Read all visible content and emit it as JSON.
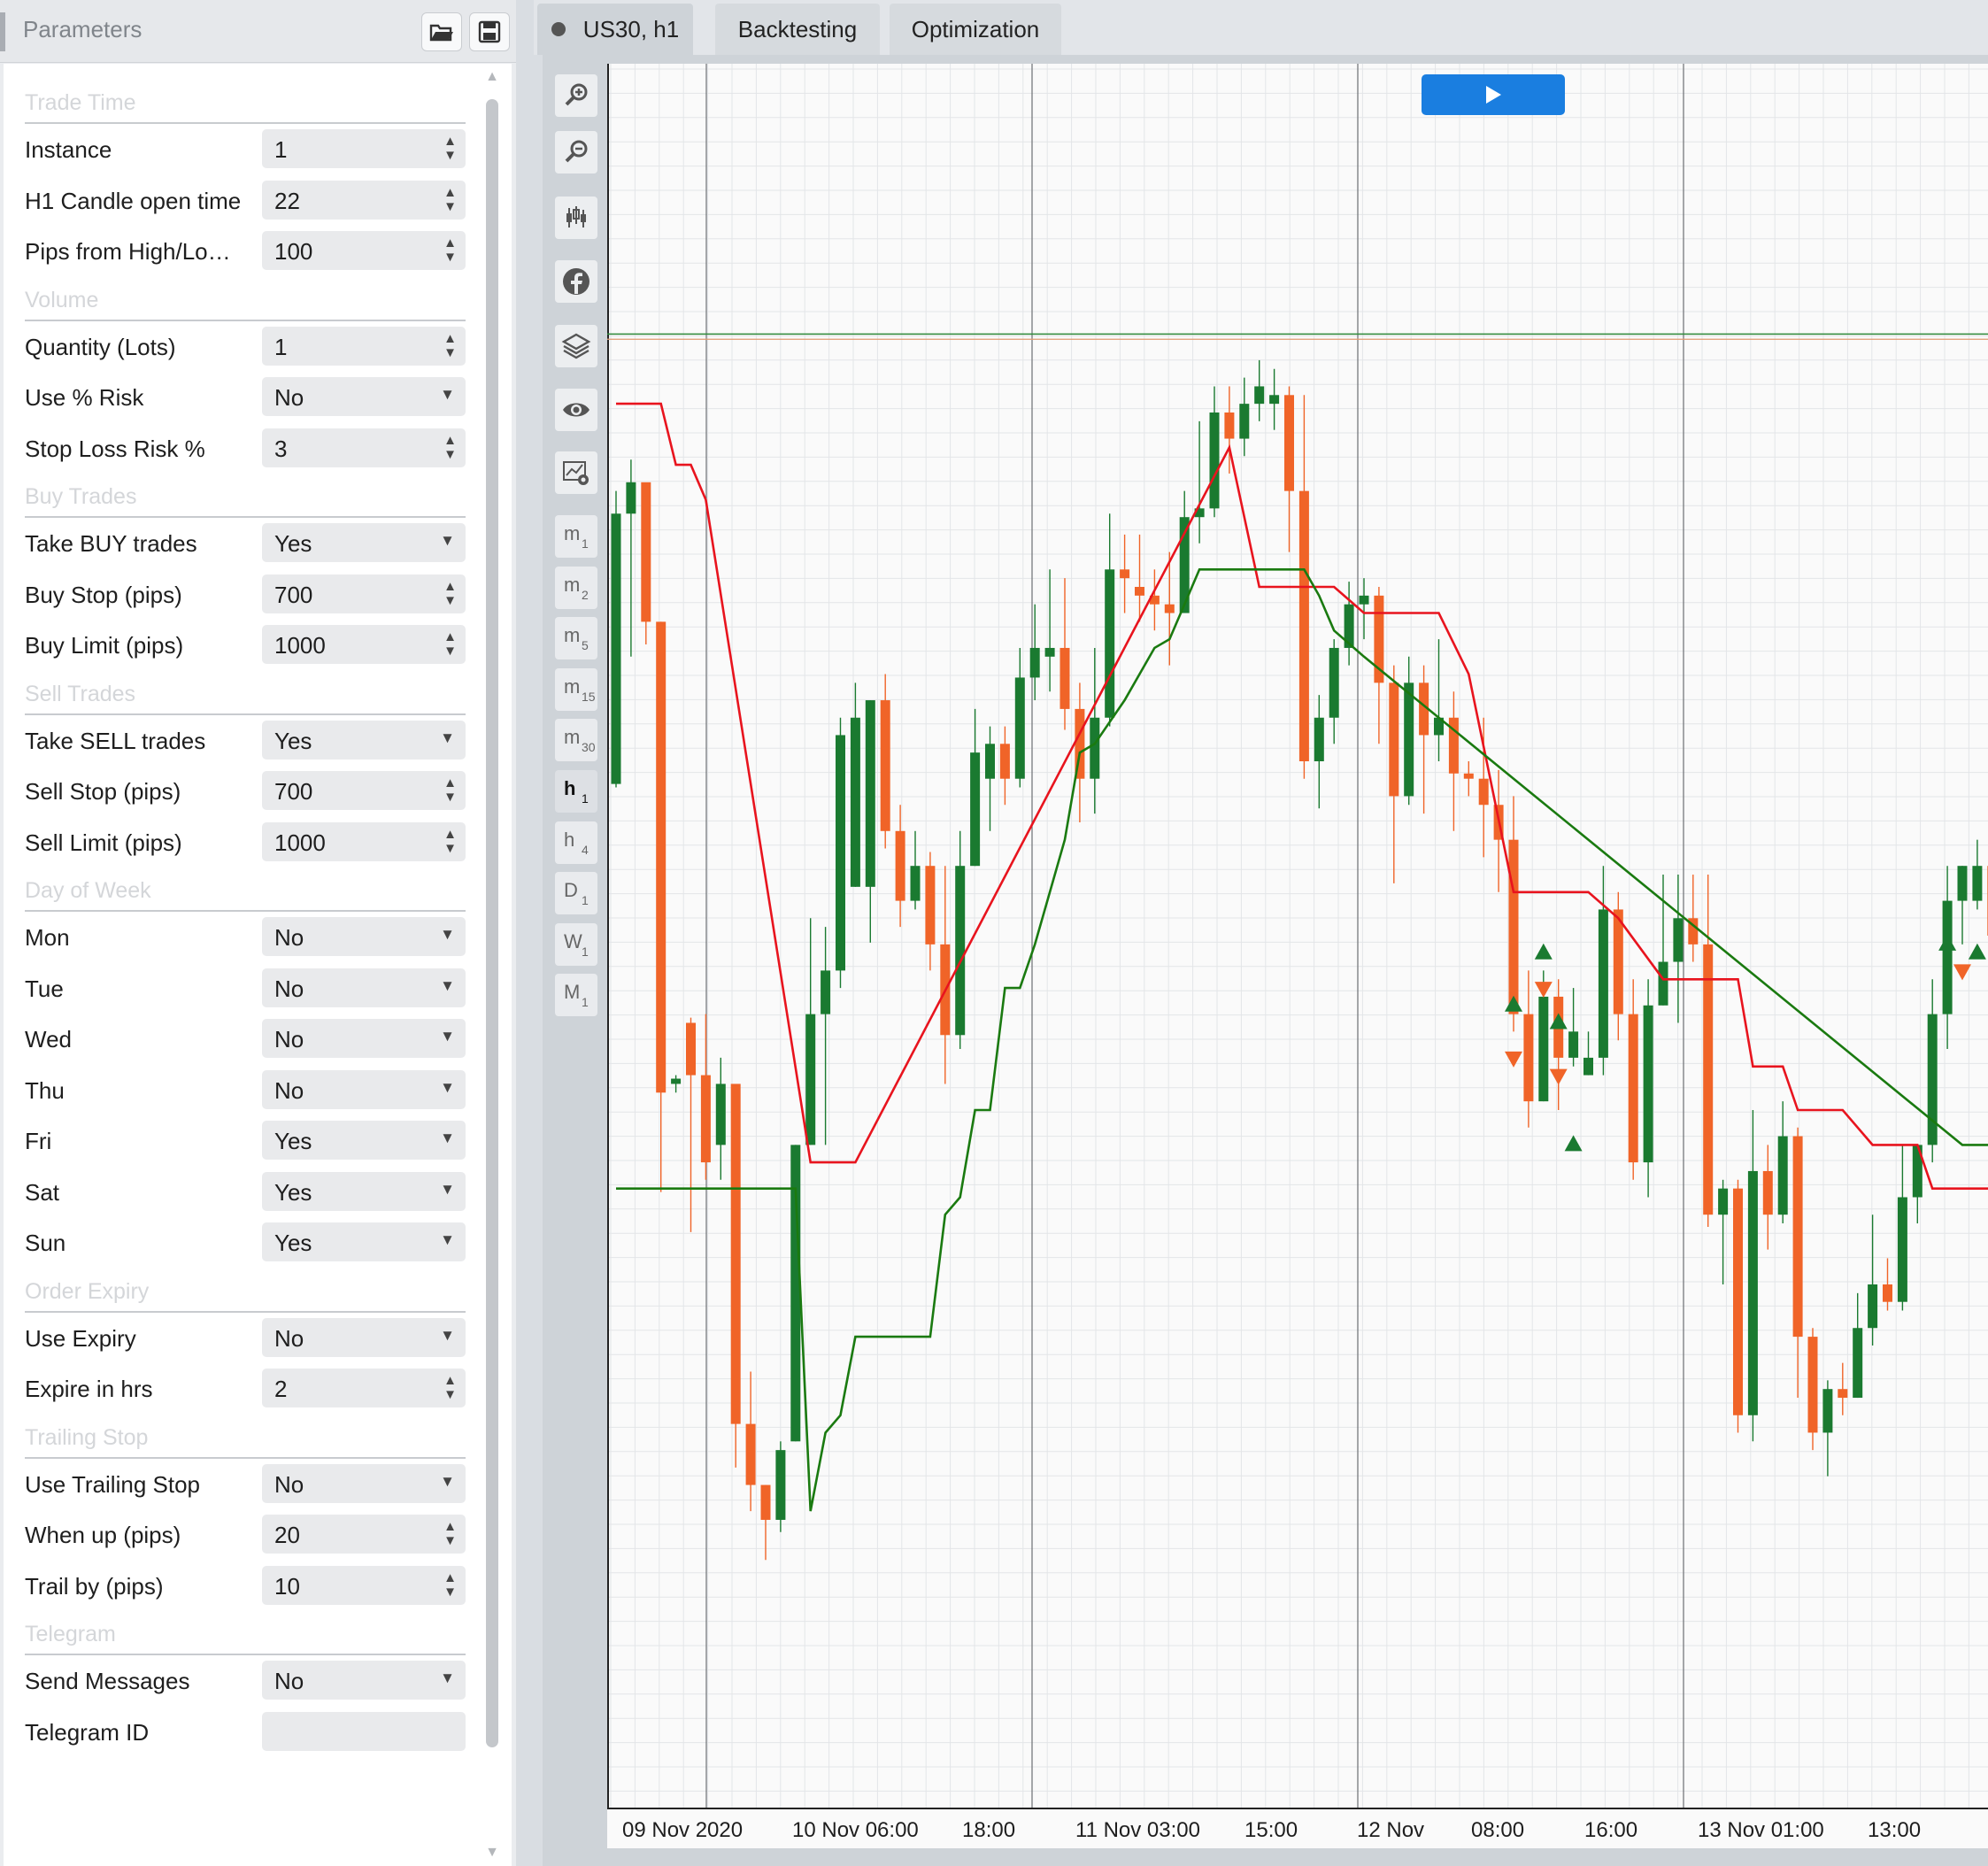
{
  "panel": {
    "title": "Parameters",
    "sections": [
      {
        "title": "Trade Time",
        "fields": [
          {
            "label": "Instance",
            "value": "1",
            "kind": "number"
          },
          {
            "label": "H1 Candle open time",
            "value": "22",
            "kind": "number"
          },
          {
            "label": "Pips from High/Low",
            "display_label": "Pips from High/Lo…",
            "value": "100",
            "kind": "number"
          }
        ]
      },
      {
        "title": "Volume",
        "fields": [
          {
            "label": "Quantity (Lots)",
            "value": "1",
            "kind": "number"
          },
          {
            "label": "Use % Risk",
            "value": "No",
            "kind": "select"
          },
          {
            "label": "Stop Loss Risk %",
            "value": "3",
            "kind": "number"
          }
        ]
      },
      {
        "title": "Buy Trades",
        "fields": [
          {
            "label": "Take BUY trades",
            "value": "Yes",
            "kind": "select"
          },
          {
            "label": "Buy Stop (pips)",
            "value": "700",
            "kind": "number"
          },
          {
            "label": "Buy Limit (pips)",
            "value": "1000",
            "kind": "number"
          }
        ]
      },
      {
        "title": "Sell Trades",
        "fields": [
          {
            "label": "Take SELL trades",
            "value": "Yes",
            "kind": "select"
          },
          {
            "label": "Sell Stop (pips)",
            "value": "700",
            "kind": "number"
          },
          {
            "label": "Sell Limit (pips)",
            "value": "1000",
            "kind": "number"
          }
        ]
      },
      {
        "title": "Day of Week",
        "fields": [
          {
            "label": "Mon",
            "value": "No",
            "kind": "select"
          },
          {
            "label": "Tue",
            "value": "No",
            "kind": "select"
          },
          {
            "label": "Wed",
            "value": "No",
            "kind": "select"
          },
          {
            "label": "Thu",
            "value": "No",
            "kind": "select"
          },
          {
            "label": "Fri",
            "value": "Yes",
            "kind": "select"
          },
          {
            "label": "Sat",
            "value": "Yes",
            "kind": "select"
          },
          {
            "label": "Sun",
            "value": "Yes",
            "kind": "select"
          }
        ]
      },
      {
        "title": "Order Expiry",
        "fields": [
          {
            "label": "Use Expiry",
            "value": "No",
            "kind": "select"
          },
          {
            "label": "Expire in hrs",
            "value": "2",
            "kind": "number"
          }
        ]
      },
      {
        "title": "Trailing Stop",
        "fields": [
          {
            "label": "Use Trailing Stop",
            "value": "No",
            "kind": "select"
          },
          {
            "label": "When up (pips)",
            "value": "20",
            "kind": "number"
          },
          {
            "label": "Trail by (pips)",
            "value": "10",
            "kind": "number"
          }
        ]
      },
      {
        "title": "Telegram",
        "fields": [
          {
            "label": "Send Messages",
            "value": "No",
            "kind": "select"
          },
          {
            "label": "Telegram ID",
            "value": "",
            "kind": "text"
          }
        ]
      }
    ],
    "icons": {
      "open": "folder-open-icon",
      "save": "save-disk-icon"
    }
  },
  "tabs": [
    {
      "label": "US30, h1",
      "active": true
    },
    {
      "label": "Backtesting",
      "active": false
    },
    {
      "label": "Optimization",
      "active": false
    }
  ],
  "toolbar": {
    "tools": [
      "zoom-in-icon",
      "zoom-out-icon",
      "candlestick-icon",
      "facebook-icon",
      "layers-icon",
      "eye-icon",
      "chart-settings-icon"
    ],
    "timeframes": [
      {
        "main": "m",
        "sub": "1"
      },
      {
        "main": "m",
        "sub": "2"
      },
      {
        "main": "m",
        "sub": "5"
      },
      {
        "main": "m",
        "sub": "15"
      },
      {
        "main": "m",
        "sub": "30"
      },
      {
        "main": "h",
        "sub": "1",
        "active": true
      },
      {
        "main": "h",
        "sub": "4"
      },
      {
        "main": "D",
        "sub": "1"
      },
      {
        "main": "W",
        "sub": "1"
      },
      {
        "main": "M",
        "sub": "1"
      }
    ]
  },
  "colors": {
    "bull": "#1a7a30",
    "bear": "#f06428",
    "upper_line": "#e8141e",
    "lower_line": "#1a7a10",
    "play": "#1a7ee0"
  },
  "chart_data": {
    "type": "candlestick",
    "symbol": "US30",
    "timeframe": "h1",
    "x_labels": [
      "09 Nov 2020",
      "10 Nov 06:00",
      "18:00",
      "11 Nov 03:00",
      "15:00",
      "12 Nov",
      "08:00",
      "16:00",
      "13 Nov 01:00",
      "13:00"
    ],
    "ylim": [
      0,
      100
    ],
    "candles": [
      [
        58.7,
        74.2,
        75.5,
        58.5
      ],
      [
        74.2,
        76.0,
        77.3,
        66.0
      ],
      [
        76.0,
        68.0,
        74.0,
        66.7
      ],
      [
        68.0,
        41.0,
        68.0,
        35.3
      ],
      [
        41.5,
        41.8,
        41.0,
        42.0
      ],
      [
        45.0,
        42.0,
        45.3,
        33.0
      ],
      [
        42.0,
        37.0,
        45.5,
        36.0
      ],
      [
        38.0,
        41.5,
        43.0,
        36.0
      ],
      [
        41.5,
        22.0,
        41.5,
        19.5
      ],
      [
        22.0,
        18.5,
        25.0,
        17.0
      ],
      [
        18.5,
        16.5,
        18.5,
        14.2
      ],
      [
        16.5,
        20.5,
        21.0,
        15.8
      ],
      [
        21.0,
        38.0,
        38.0,
        21.0
      ],
      [
        38.0,
        45.5,
        51.0,
        38.0
      ],
      [
        45.5,
        48.0,
        50.5,
        38.0
      ],
      [
        48.0,
        61.5,
        62.5,
        47.0
      ],
      [
        52.8,
        62.5,
        64.5,
        52.8
      ],
      [
        52.8,
        63.5,
        63.5,
        49.6
      ],
      [
        63.5,
        56.0,
        65.0,
        55.0
      ],
      [
        56.0,
        52.0,
        57.5,
        50.5
      ],
      [
        52.0,
        54.0,
        56.0,
        51.5
      ],
      [
        54.0,
        49.5,
        54.8,
        48.0
      ],
      [
        49.5,
        44.3,
        54.0,
        41.5
      ],
      [
        44.3,
        54.0,
        56.0,
        43.5
      ],
      [
        54.0,
        60.5,
        63.0,
        54.0
      ],
      [
        59.0,
        61.0,
        62.0,
        56.0
      ],
      [
        61.0,
        59.0,
        62.0,
        57.5
      ],
      [
        59.0,
        64.8,
        66.5,
        58.5
      ],
      [
        64.8,
        66.5,
        69.0,
        63.5
      ],
      [
        66.0,
        66.5,
        71.0,
        64.0
      ],
      [
        66.5,
        63.0,
        70.5,
        61.8
      ],
      [
        63.0,
        59.0,
        64.5,
        56.5
      ],
      [
        59.0,
        62.5,
        66.5,
        57.0
      ],
      [
        62.5,
        71.0,
        74.2,
        62.0
      ],
      [
        71.0,
        70.5,
        73.0,
        68.5
      ],
      [
        70.0,
        69.5,
        73.0,
        68.0
      ],
      [
        69.5,
        69.0,
        71.0,
        67.5
      ],
      [
        69.0,
        68.5,
        72.0,
        65.5
      ],
      [
        68.5,
        74.0,
        75.5,
        68.5
      ],
      [
        74.0,
        74.5,
        79.5,
        72.5
      ],
      [
        74.5,
        80.0,
        81.5,
        74.0
      ],
      [
        80.0,
        78.5,
        81.5,
        76.5
      ],
      [
        78.5,
        80.5,
        82.0,
        77.5
      ],
      [
        80.5,
        81.5,
        83.0,
        79.5
      ],
      [
        80.5,
        81.0,
        82.5,
        79.0
      ],
      [
        81.0,
        75.5,
        81.5,
        72.0
      ],
      [
        75.5,
        60.0,
        81.0,
        59.0
      ],
      [
        60.0,
        62.5,
        63.8,
        57.3
      ],
      [
        62.5,
        66.5,
        67.0,
        61.0
      ],
      [
        66.5,
        69.0,
        70.3,
        65.5
      ],
      [
        69.0,
        69.5,
        70.5,
        67.0
      ],
      [
        69.5,
        64.5,
        70.0,
        61.0
      ],
      [
        64.5,
        58.0,
        65.5,
        53.0
      ],
      [
        58.0,
        64.5,
        66.0,
        57.5
      ],
      [
        64.5,
        61.5,
        65.5,
        57.0
      ],
      [
        61.5,
        62.5,
        67.0,
        60.0
      ],
      [
        62.5,
        59.3,
        64.0,
        56.0
      ],
      [
        59.3,
        59.0,
        60.0,
        58.0
      ],
      [
        59.0,
        57.5,
        62.5,
        54.5
      ],
      [
        57.5,
        55.5,
        59.5,
        52.5
      ],
      [
        55.5,
        45.5,
        58.0,
        44.5
      ],
      [
        45.5,
        40.5,
        48.0,
        39.0
      ],
      [
        40.5,
        46.5,
        48.0,
        40.5
      ],
      [
        46.5,
        43.0,
        47.5,
        40.0
      ],
      [
        43.0,
        44.5,
        47.0,
        42.5
      ],
      [
        42.0,
        43.0,
        44.5,
        42.0
      ],
      [
        43.0,
        51.5,
        54.0,
        42.0
      ],
      [
        51.5,
        45.5,
        52.5,
        44.0
      ],
      [
        45.5,
        37.0,
        47.5,
        36.0
      ],
      [
        37.0,
        46.0,
        47.5,
        35.0
      ],
      [
        46.0,
        48.5,
        53.5,
        46.0
      ],
      [
        48.5,
        51.0,
        53.5,
        45.0
      ],
      [
        51.0,
        49.5,
        53.5,
        48.5
      ],
      [
        49.5,
        34.0,
        53.5,
        33.3
      ],
      [
        34.0,
        35.5,
        36.0,
        30.0
      ],
      [
        35.5,
        22.5,
        36.0,
        21.5
      ],
      [
        22.5,
        36.5,
        40.0,
        21.0
      ],
      [
        36.5,
        34.0,
        38.0,
        32.0
      ],
      [
        34.0,
        38.5,
        40.5,
        33.5
      ],
      [
        38.5,
        27.0,
        39.0,
        23.5
      ],
      [
        27.0,
        21.5,
        27.5,
        20.5
      ],
      [
        21.5,
        24.0,
        24.5,
        19.0
      ],
      [
        24.0,
        23.5,
        25.5,
        22.5
      ],
      [
        23.5,
        27.5,
        29.5,
        23.5
      ],
      [
        27.5,
        30.0,
        34.0,
        26.5
      ],
      [
        30.0,
        29.0,
        31.5,
        28.5
      ],
      [
        29.0,
        35.0,
        38.0,
        28.5
      ],
      [
        35.0,
        38.0,
        38.0,
        33.5
      ],
      [
        38.0,
        45.5,
        47.5,
        37.0
      ],
      [
        45.5,
        52.0,
        54.0,
        43.5
      ],
      [
        52.0,
        54.0,
        54.0,
        49.5
      ],
      [
        52.0,
        54.0,
        55.5,
        51.5
      ],
      [
        54.0,
        50.0,
        55.0,
        48.5
      ],
      [
        50.0,
        49.5,
        52.5,
        49.0
      ],
      [
        49.5,
        52.0,
        54.5,
        48.5
      ],
      [
        52.0,
        48.0,
        54.0,
        47.5
      ],
      [
        48.0,
        54.5,
        56.5,
        46.5
      ],
      [
        54.5,
        56.5,
        58.0,
        53.5
      ],
      [
        56.5,
        58.0,
        61.0,
        55.5
      ],
      [
        58.0,
        59.5,
        62.0,
        58.0
      ],
      [
        59.5,
        61.5,
        62.0,
        59.0
      ],
      [
        61.5,
        66.0,
        71.0,
        60.5
      ],
      [
        66.0,
        66.5,
        69.0,
        64.5
      ],
      [
        66.5,
        71.5,
        72.5,
        64.0
      ]
    ],
    "upper_line": [
      [
        0,
        80.5
      ],
      [
        3,
        80.5
      ],
      [
        4,
        77.0
      ],
      [
        5,
        77.0
      ],
      [
        6,
        75.0
      ],
      [
        13,
        37.0
      ],
      [
        16,
        37.0
      ],
      [
        41,
        78.0
      ],
      [
        43,
        70.0
      ],
      [
        48,
        70.0
      ],
      [
        50,
        68.5
      ],
      [
        55,
        68.5
      ],
      [
        57,
        65.0
      ],
      [
        60,
        52.5
      ],
      [
        65,
        52.5
      ],
      [
        67,
        51.0
      ],
      [
        70,
        47.5
      ],
      [
        75,
        47.5
      ],
      [
        76,
        42.5
      ],
      [
        78,
        42.5
      ],
      [
        79,
        40.0
      ],
      [
        82,
        40.0
      ],
      [
        84,
        38.0
      ],
      [
        87,
        38.0
      ],
      [
        88,
        35.5
      ],
      [
        92,
        35.5
      ],
      [
        93,
        38.0
      ],
      [
        102,
        38.0
      ]
    ],
    "lower_line": [
      [
        0,
        35.5
      ],
      [
        1,
        35.5
      ],
      [
        12,
        35.5
      ],
      [
        13,
        17.0
      ],
      [
        14,
        21.5
      ],
      [
        15,
        22.5
      ],
      [
        16,
        27.0
      ],
      [
        21,
        27.0
      ],
      [
        22,
        34.0
      ],
      [
        23,
        35.0
      ],
      [
        24,
        40.0
      ],
      [
        25,
        40.0
      ],
      [
        26,
        47.0
      ],
      [
        27,
        47.0
      ],
      [
        28,
        49.5
      ],
      [
        30,
        55.5
      ],
      [
        31,
        60.5
      ],
      [
        32,
        61.0
      ],
      [
        34,
        63.5
      ],
      [
        36,
        66.5
      ],
      [
        37,
        67.0
      ],
      [
        38,
        69.0
      ],
      [
        39,
        71.0
      ],
      [
        40,
        71.0
      ],
      [
        46,
        71.0
      ],
      [
        47,
        69.5
      ],
      [
        48,
        67.5
      ],
      [
        50,
        66.0
      ],
      [
        90,
        38.0
      ],
      [
        92,
        38.0
      ],
      [
        93,
        38.5
      ],
      [
        95,
        38.5
      ],
      [
        96,
        44.5
      ],
      [
        97,
        46.0
      ],
      [
        98,
        48.0
      ],
      [
        99,
        50.5
      ],
      [
        100,
        53.5
      ],
      [
        101,
        58.5
      ],
      [
        102,
        60.5
      ]
    ],
    "markers": [
      {
        "candle": 60,
        "value": 46.0,
        "side": "buy"
      },
      {
        "candle": 60,
        "value": 43.0,
        "side": "sell"
      },
      {
        "candle": 62,
        "value": 49.0,
        "side": "buy"
      },
      {
        "candle": 62,
        "value": 47.0,
        "side": "sell"
      },
      {
        "candle": 63,
        "value": 45.0,
        "side": "buy"
      },
      {
        "candle": 63,
        "value": 42.0,
        "side": "sell"
      },
      {
        "candle": 64,
        "value": 38.0,
        "side": "buy"
      },
      {
        "candle": 89,
        "value": 49.5,
        "side": "buy"
      },
      {
        "candle": 90,
        "value": 48.0,
        "side": "sell"
      },
      {
        "candle": 91,
        "value": 49.0,
        "side": "buy"
      }
    ],
    "horizontal_lines": [
      84.5,
      84.2
    ],
    "grid": true
  }
}
